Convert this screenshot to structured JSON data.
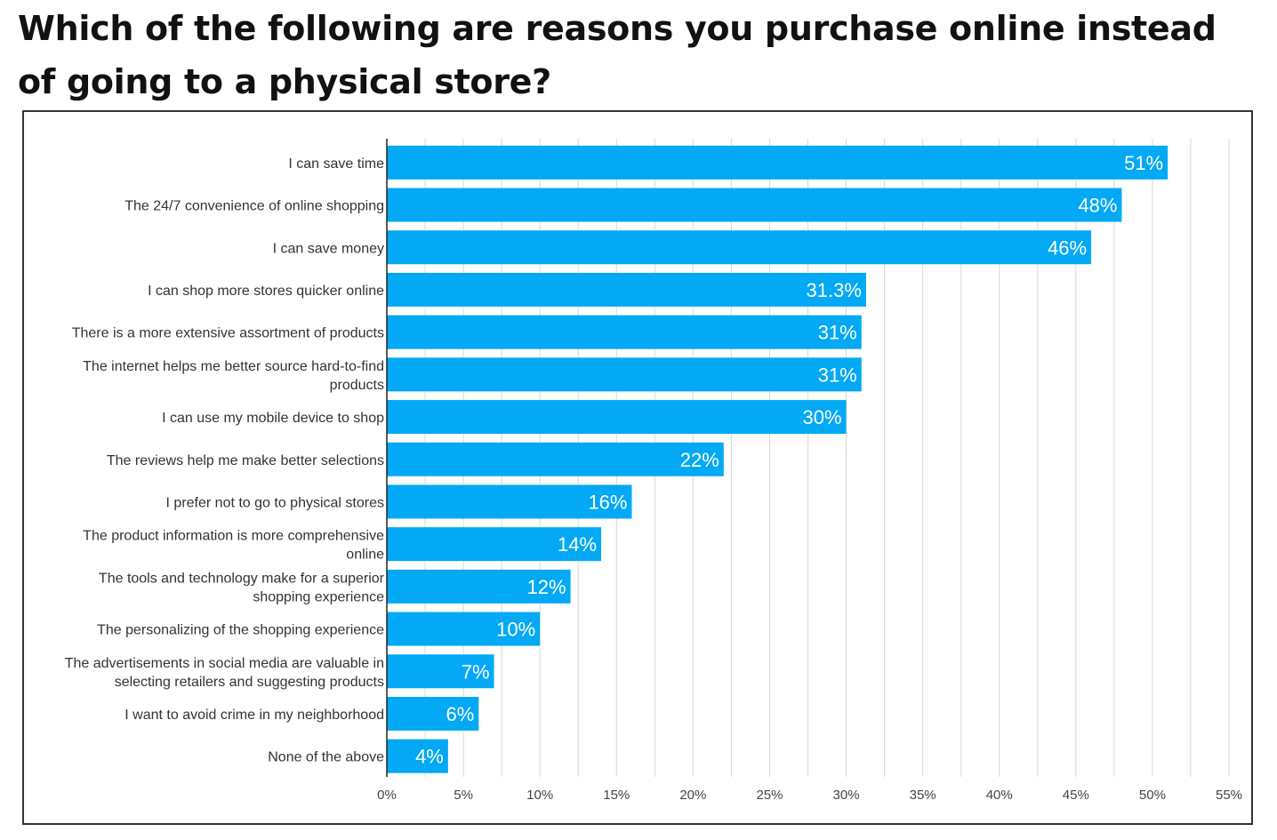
{
  "chart_data": {
    "type": "bar",
    "orientation": "horizontal",
    "title": "Which of the following are reasons you purchase online instead of going to a physical store?",
    "categories": [
      "I can save time",
      "The 24/7 convenience of online shopping",
      "I can save money",
      "I can shop more stores quicker online",
      "There is a more extensive assortment of products",
      "The internet helps me better source hard-to-find products",
      "I can use my mobile device to shop",
      "The reviews help me make better selections",
      "I prefer not to go to physical stores",
      "The product information is more comprehensive online",
      "The tools and technology make for a superior shopping experience",
      "The personalizing of the shopping experience",
      "The advertisements in social media are valuable in selecting retailers and suggesting products",
      "I want to avoid crime in my neighborhood",
      "None of the above"
    ],
    "category_lines": [
      [
        "I can save time"
      ],
      [
        "The 24/7 convenience of online shopping"
      ],
      [
        "I can save money"
      ],
      [
        "I can shop more stores quicker online"
      ],
      [
        "There is a more extensive assortment of products"
      ],
      [
        "The internet helps me better source hard-to-find",
        "products"
      ],
      [
        "I can use my mobile device to shop"
      ],
      [
        "The reviews help me make better selections"
      ],
      [
        "I prefer not to go to physical stores"
      ],
      [
        "The product information is more comprehensive",
        "online"
      ],
      [
        "The tools and technology make for a superior",
        "shopping experience"
      ],
      [
        "The personalizing of the shopping experience"
      ],
      [
        "The advertisements in social media are valuable in",
        "selecting retailers and suggesting products"
      ],
      [
        "I want to avoid crime in my neighborhood"
      ],
      [
        "None of the above"
      ]
    ],
    "values": [
      51,
      48,
      46,
      31.3,
      31,
      31,
      30,
      22,
      16,
      14,
      12,
      10,
      7,
      6,
      4
    ],
    "value_labels": [
      "51%",
      "48%",
      "46%",
      "31.3%",
      "31%",
      "31%",
      "30%",
      "22%",
      "16%",
      "14%",
      "12%",
      "10%",
      "7%",
      "6%",
      "4%"
    ],
    "x_ticks": [
      0,
      5,
      10,
      15,
      20,
      25,
      30,
      35,
      40,
      45,
      50,
      55
    ],
    "x_tick_labels": [
      "0%",
      "5%",
      "10%",
      "15%",
      "20%",
      "25%",
      "30%",
      "35%",
      "40%",
      "45%",
      "50%",
      "55%"
    ],
    "xlim": [
      0,
      55
    ],
    "grid": true,
    "bar_color": "#03A9F4",
    "grid_color": "#D9D9D9",
    "axis_color": "#222222"
  }
}
